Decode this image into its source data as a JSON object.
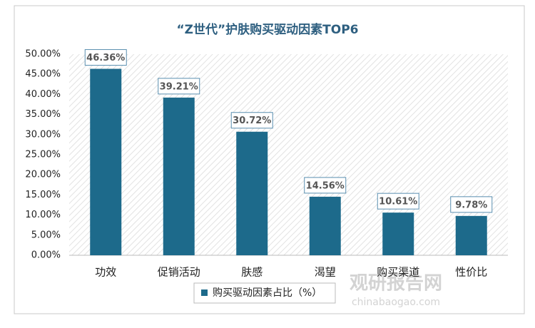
{
  "chart_data": {
    "type": "bar",
    "title": "“Z世代”护肤购买驱动因素TOP6",
    "categories": [
      "功效",
      "促销活动",
      "肤感",
      "渴望",
      "购买渠道",
      "性价比"
    ],
    "series": [
      {
        "name": "购买驱动因素占比（%）",
        "color": "#1d6a8b",
        "values": [
          46.36,
          39.21,
          30.72,
          14.56,
          10.61,
          9.78
        ],
        "value_labels": [
          "46.36%",
          "39.21%",
          "30.72%",
          "14.56%",
          "10.61%",
          "9.78%"
        ]
      }
    ],
    "ylim": [
      0,
      50
    ],
    "yticks": [
      {
        "value": 0,
        "label": "0.00%"
      },
      {
        "value": 5,
        "label": "5.00%"
      },
      {
        "value": 10,
        "label": "10.00%"
      },
      {
        "value": 15,
        "label": "15.00%"
      },
      {
        "value": 20,
        "label": "20.00%"
      },
      {
        "value": 25,
        "label": "25.00%"
      },
      {
        "value": 30,
        "label": "30.00%"
      },
      {
        "value": 35,
        "label": "35.00%"
      },
      {
        "value": 40,
        "label": "40.00%"
      },
      {
        "value": 45,
        "label": "45.00%"
      },
      {
        "value": 50,
        "label": "50.00%"
      }
    ],
    "legend": "bottom",
    "watermark": [
      "观研报告网",
      "chinabaogao.com"
    ]
  }
}
